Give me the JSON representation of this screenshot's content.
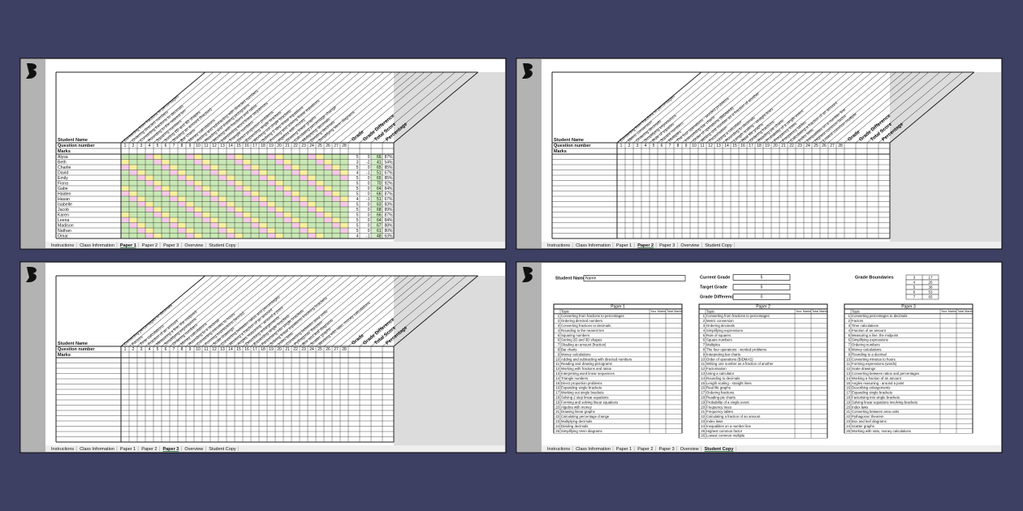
{
  "tabs": [
    "Instructions",
    "Class Information",
    "Paper 1",
    "Paper 2",
    "Paper 3",
    "Overview",
    "Student Copy"
  ],
  "panels": [
    {
      "active_tab": 2
    },
    {
      "active_tab": 3
    },
    {
      "active_tab": 4
    },
    {
      "active_tab": 6
    }
  ],
  "sheet_labels": {
    "student_name": "Student Name",
    "question_number": "Question number",
    "marks": "Marks"
  },
  "summary_headers": [
    "Grade",
    "Grade Difference",
    "Total Score",
    "Percentage"
  ],
  "question_numbers": [
    1,
    2,
    3,
    4,
    5,
    6,
    7,
    8,
    9,
    10,
    11,
    12,
    13,
    14,
    15,
    16,
    17,
    18,
    19,
    20,
    21,
    22,
    23,
    24,
    25,
    26,
    27,
    28
  ],
  "students": [
    {
      "name": "Alysa",
      "grade": 5,
      "difference": 0,
      "total": 66,
      "percentage": "87%"
    },
    {
      "name": "Beth",
      "grade": 3,
      "difference": -2,
      "total": 41,
      "percentage": "54%"
    },
    {
      "name": "Charlie",
      "grade": 5,
      "difference": 0,
      "total": 65,
      "percentage": "85%"
    },
    {
      "name": "David",
      "grade": 4,
      "difference": -1,
      "total": 51,
      "percentage": "67%"
    },
    {
      "name": "Emily",
      "grade": 5,
      "difference": 0,
      "total": 65,
      "percentage": "85%"
    },
    {
      "name": "Fiona",
      "grade": 5,
      "difference": 0,
      "total": 70,
      "percentage": "92%"
    },
    {
      "name": "Gabe",
      "grade": 5,
      "difference": 0,
      "total": 64,
      "percentage": "84%"
    },
    {
      "name": "Haiden",
      "grade": 5,
      "difference": 0,
      "total": 66,
      "percentage": "87%"
    },
    {
      "name": "Hasan",
      "grade": 4,
      "difference": -1,
      "total": 51,
      "percentage": "67%"
    },
    {
      "name": "Isabelle",
      "grade": 5,
      "difference": 0,
      "total": 63,
      "percentage": "83%"
    },
    {
      "name": "Jacob",
      "grade": 5,
      "difference": 0,
      "total": 68,
      "percentage": "89%"
    },
    {
      "name": "Karen",
      "grade": 5,
      "difference": 0,
      "total": 66,
      "percentage": "87%"
    },
    {
      "name": "Leena",
      "grade": 5,
      "difference": 0,
      "total": 64,
      "percentage": "84%"
    },
    {
      "name": "Madison",
      "grade": 5,
      "difference": 0,
      "total": 67,
      "percentage": "88%"
    },
    {
      "name": "Nathan",
      "grade": 5,
      "difference": 0,
      "total": 61,
      "percentage": "80%"
    },
    {
      "name": "Omar",
      "grade": 4,
      "difference": -1,
      "total": 48,
      "percentage": "63%"
    }
  ],
  "student_copy": {
    "student_name_label": "Student Name",
    "student_name": "Name",
    "current_grade_label": "Current Grade",
    "current_grade": 5,
    "target_grade_label": "Target Grade",
    "target_grade": 5,
    "grade_difference_label": "Grade Difference",
    "grade_difference": 0,
    "grade_boundaries_label": "Grade Boundaries",
    "grade_boundaries": [
      [
        3,
        17
      ],
      [
        4,
        26
      ],
      [
        5,
        38
      ],
      [
        6,
        53
      ],
      [
        7,
        65
      ]
    ],
    "table_headers": [
      "Topic",
      "Your Marks",
      "Total Marks"
    ],
    "papers": [
      {
        "title": "Paper 1",
        "topics": [
          "Converting from fractions to percentages",
          "Ordering directed numbers",
          "Converting fractions to decimals",
          "Rounding to the nearest ten",
          "Squaring numbers",
          "Sorting 2D and 3D shapes",
          "Shading an amount (fraction)",
          "Bar charts",
          "Money calculations",
          "Adding and subtracting with directed numbers",
          "Reading and drawing pictograms",
          "Working with fractions and ratios",
          "Interpreting word linear sequences",
          "Triangle numbers",
          "Direct proportion problems",
          "Expanding single brackets",
          "Working out single brackets",
          "Solving 2 step linear equations",
          "Forming and solving linear equations",
          "Algebra with money",
          "Drawing linear graphs",
          "Calculating percentage change",
          "Multiplying decimals",
          "Dividing decimals",
          "Simplifying Venn diagrams"
        ]
      },
      {
        "title": "Paper 2",
        "topics": [
          "Converting from fractions to percentages",
          "Metric conversion",
          "Ordering decimals",
          "Simplifying expressions",
          "Rule of squares",
          "Square numbers",
          "Multiples",
          "The four operations - worded problems",
          "Interpreting bar charts",
          "Order of operations (BIDMAS)",
          "Writing one number as a fraction of another",
          "Factorisation",
          "Using a calculator",
          "Rounding to decimals",
          "Length scaling - straight lines",
          "Real life graphs",
          "Ordering fractions",
          "Reading pie charts",
          "Probability of a single event",
          "Frequency trees",
          "Frequency tables",
          "Calculating a fraction of an amount",
          "Index laws",
          "Inequalities on a number line",
          "Highest common factor",
          "Lowest common multiple"
        ]
      },
      {
        "title": "Paper 3",
        "topics": [
          "Converting percentages to decimals",
          "Factors",
          "Time calculations",
          "Fraction of an amount",
          "Measuring a line, the midpoint",
          "Simplifying expressions",
          "Ordering numbers",
          "Money calculations",
          "Rounding to a decimal",
          "Converting minutes to hours",
          "Forming expressions (words)",
          "Scale drawings",
          "Converting between ratios and percentages",
          "Working a fraction of an amount",
          "Angles reasoning - around a point",
          "Describing enlargements",
          "Expanding single brackets",
          "Factorising into single brackets",
          "Solving linear equations involving brackets",
          "Index laws",
          "Converting between area units",
          "Pythagoras' theorem",
          "Box and leaf diagrams",
          "Scatter graphs",
          "Working with ratio, money calculations"
        ]
      }
    ]
  }
}
